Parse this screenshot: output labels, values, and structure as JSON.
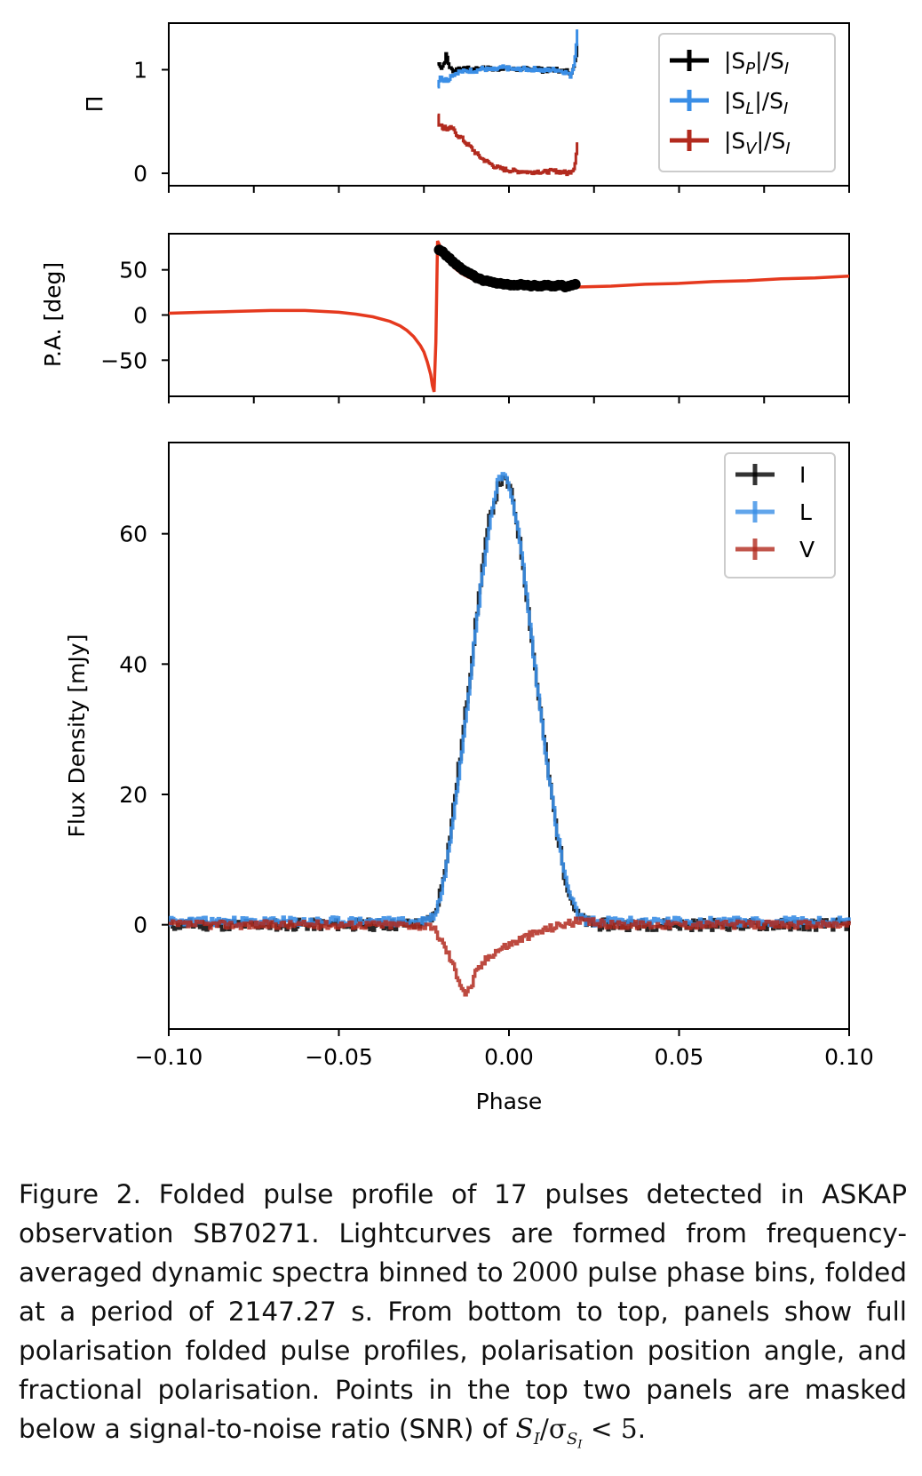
{
  "colors": {
    "black": "#000000",
    "blue": "#3a8ee6",
    "red": "#b22a1e",
    "pa_model": "#e5391e",
    "axis": "#000000"
  },
  "chart_data": [
    {
      "type": "line",
      "panel": "fractional polarisation (top)",
      "xlim": [
        -0.1,
        0.1
      ],
      "ylim": [
        -0.12,
        1.45
      ],
      "yticks": [
        {
          "v": 0,
          "label": "0"
        },
        {
          "v": 1,
          "label": "1"
        }
      ],
      "ylabel": "Π",
      "series": [
        {
          "name": "|S_P|/S_I",
          "legend": {
            "main": "|S",
            "sub": "P",
            "tail": "|/S",
            "sub2": "I"
          },
          "color": "#000000",
          "x": [
            -0.021,
            -0.0205,
            -0.02,
            -0.0195,
            -0.019,
            -0.0185,
            -0.018,
            -0.0175,
            -0.017,
            -0.016,
            -0.015,
            -0.014,
            -0.012,
            -0.01,
            -0.008,
            -0.006,
            -0.004,
            -0.002,
            0.0,
            0.002,
            0.004,
            0.006,
            0.008,
            0.01,
            0.012,
            0.014,
            0.016,
            0.017,
            0.018,
            0.019,
            0.0195,
            0.02
          ],
          "y": [
            1.05,
            1.06,
            1.02,
            1.04,
            1.08,
            1.16,
            1.07,
            1.02,
            1.0,
            0.99,
            1.02,
            1.0,
            1.01,
            1.0,
            1.02,
            1.01,
            1.0,
            1.02,
            1.01,
            1.0,
            1.01,
            1.0,
            1.02,
            0.99,
            1.0,
            1.0,
            0.98,
            0.99,
            0.97,
            1.02,
            1.1,
            1.25
          ]
        },
        {
          "name": "|S_L|/S_I",
          "legend": {
            "main": "|S",
            "sub": "L",
            "tail": "|/S",
            "sub2": "I"
          },
          "color": "#3a8ee6",
          "x": [
            -0.021,
            -0.0205,
            -0.02,
            -0.0195,
            -0.019,
            -0.0185,
            -0.018,
            -0.0175,
            -0.017,
            -0.016,
            -0.015,
            -0.014,
            -0.012,
            -0.01,
            -0.008,
            -0.006,
            -0.004,
            -0.002,
            0.0,
            0.002,
            0.004,
            0.006,
            0.008,
            0.01,
            0.012,
            0.014,
            0.016,
            0.017,
            0.018,
            0.019,
            0.0195,
            0.02
          ],
          "y": [
            0.85,
            0.92,
            0.95,
            0.88,
            0.92,
            0.9,
            0.9,
            0.93,
            0.95,
            0.96,
            0.98,
            0.98,
            0.99,
            0.99,
            1.01,
            1.0,
            1.0,
            1.02,
            1.01,
            1.0,
            1.01,
            1.0,
            1.01,
            0.99,
            1.0,
            1.0,
            0.98,
            0.97,
            0.94,
            1.05,
            1.2,
            1.38
          ]
        },
        {
          "name": "|S_V|/S_I",
          "legend": {
            "main": "|S",
            "sub": "V",
            "tail": "|/S",
            "sub2": "I"
          },
          "color": "#b22a1e",
          "x": [
            -0.021,
            -0.0205,
            -0.02,
            -0.0195,
            -0.019,
            -0.018,
            -0.017,
            -0.016,
            -0.015,
            -0.014,
            -0.013,
            -0.012,
            -0.011,
            -0.01,
            -0.009,
            -0.008,
            -0.007,
            -0.006,
            -0.005,
            -0.004,
            -0.002,
            0.0,
            0.002,
            0.004,
            0.006,
            0.008,
            0.01,
            0.012,
            0.014,
            0.016,
            0.017,
            0.018,
            0.019,
            0.0195,
            0.02
          ],
          "y": [
            0.55,
            0.45,
            0.48,
            0.42,
            0.45,
            0.42,
            0.44,
            0.4,
            0.36,
            0.34,
            0.3,
            0.27,
            0.24,
            0.2,
            0.17,
            0.14,
            0.12,
            0.1,
            0.08,
            0.06,
            0.04,
            0.03,
            0.02,
            0.02,
            0.01,
            0.02,
            0.01,
            0.02,
            0.02,
            0.01,
            0.0,
            0.02,
            0.05,
            0.15,
            0.3
          ]
        }
      ]
    },
    {
      "type": "line",
      "panel": "position angle (middle)",
      "xlim": [
        -0.1,
        0.1
      ],
      "ylim": [
        -90,
        90
      ],
      "yticks": [
        {
          "v": 50,
          "label": "50"
        },
        {
          "v": 0,
          "label": "0"
        },
        {
          "v": -50,
          "label": "−50"
        }
      ],
      "ylabel": "P.A. [deg]",
      "model": {
        "name": "RVM fit",
        "color": "#e5391e",
        "x": [
          -0.1,
          -0.09,
          -0.08,
          -0.07,
          -0.06,
          -0.05,
          -0.045,
          -0.04,
          -0.035,
          -0.032,
          -0.03,
          -0.028,
          -0.026,
          -0.025,
          -0.024,
          -0.023,
          -0.0225,
          -0.022,
          -0.0215,
          -0.021,
          -0.0205,
          -0.02,
          -0.019,
          -0.018,
          -0.016,
          -0.014,
          -0.012,
          -0.01,
          -0.008,
          -0.005,
          0.0,
          0.005,
          0.01,
          0.02,
          0.03,
          0.04,
          0.05,
          0.06,
          0.07,
          0.08,
          0.09,
          0.1
        ],
        "y": [
          2,
          3,
          4,
          5,
          5,
          3,
          1,
          -2,
          -7,
          -12,
          -17,
          -24,
          -34,
          -41,
          -52,
          -66,
          -78,
          -85,
          -30,
          82,
          78,
          73,
          66,
          60,
          52,
          46,
          42,
          39,
          37,
          35,
          33,
          32,
          31,
          31,
          32,
          34,
          35,
          37,
          38,
          40,
          41,
          43
        ]
      },
      "points": {
        "name": "measured P.A.",
        "color": "#000000",
        "x": [
          -0.0205,
          -0.0195,
          -0.0185,
          -0.0175,
          -0.0165,
          -0.0155,
          -0.0145,
          -0.0135,
          -0.0125,
          -0.0115,
          -0.0105,
          -0.0095,
          -0.0085,
          -0.0075,
          -0.0065,
          -0.0055,
          -0.0045,
          -0.0035,
          -0.0025,
          -0.0015,
          -0.0005,
          0.0005,
          0.0015,
          0.0025,
          0.0035,
          0.0045,
          0.0055,
          0.0065,
          0.0075,
          0.0085,
          0.0095,
          0.0105,
          0.0115,
          0.0125,
          0.0135,
          0.0145,
          0.0155,
          0.0165,
          0.0175,
          0.0185,
          0.0195
        ],
        "y": [
          72,
          70,
          66,
          63,
          59,
          56,
          53,
          50,
          48,
          46,
          44,
          41,
          40,
          38,
          38,
          37,
          36,
          35,
          35,
          34,
          34,
          33,
          33,
          33,
          34,
          33,
          33,
          32,
          33,
          32,
          32,
          33,
          33,
          32,
          32,
          33,
          33,
          31,
          32,
          33,
          34
        ]
      }
    },
    {
      "type": "line",
      "panel": "full polarisation pulse profile (bottom)",
      "xlim": [
        -0.1,
        0.1
      ],
      "ylim": [
        -16,
        74
      ],
      "yticks": [
        {
          "v": 0,
          "label": "0"
        },
        {
          "v": 20,
          "label": "20"
        },
        {
          "v": 40,
          "label": "40"
        },
        {
          "v": 60,
          "label": "60"
        }
      ],
      "xticks": [
        {
          "v": -0.1,
          "label": "−0.10"
        },
        {
          "v": -0.05,
          "label": "−0.05"
        },
        {
          "v": 0.0,
          "label": "0.00"
        },
        {
          "v": 0.05,
          "label": "0.05"
        },
        {
          "v": 0.1,
          "label": "0.10"
        }
      ],
      "xlabel": "Phase",
      "ylabel": "Flux Density [mJy]",
      "series": [
        {
          "name": "I",
          "color": "#000000",
          "noise": 0.9,
          "x": [
            -0.1,
            -0.06,
            -0.03,
            -0.025,
            -0.022,
            -0.02,
            -0.018,
            -0.016,
            -0.014,
            -0.012,
            -0.01,
            -0.008,
            -0.006,
            -0.004,
            -0.003,
            -0.002,
            -0.001,
            0.0,
            0.001,
            0.002,
            0.004,
            0.006,
            0.008,
            0.01,
            0.012,
            0.014,
            0.016,
            0.018,
            0.02,
            0.022,
            0.025,
            0.03,
            0.06,
            0.1
          ],
          "y": [
            0,
            0,
            0,
            0.3,
            1.5,
            6,
            12,
            20,
            28,
            37,
            46,
            55,
            62,
            66,
            68,
            68,
            68,
            67,
            65,
            62,
            55,
            46,
            37,
            29,
            21,
            14,
            8,
            4,
            1.5,
            0.5,
            0,
            0,
            0,
            0
          ]
        },
        {
          "name": "L",
          "color": "#3a8ee6",
          "noise": 0.7,
          "x": [
            -0.1,
            -0.06,
            -0.03,
            -0.025,
            -0.022,
            -0.02,
            -0.018,
            -0.016,
            -0.014,
            -0.012,
            -0.01,
            -0.008,
            -0.006,
            -0.004,
            -0.003,
            -0.002,
            -0.001,
            0.0,
            0.001,
            0.002,
            0.004,
            0.006,
            0.008,
            0.01,
            0.012,
            0.014,
            0.016,
            0.018,
            0.02,
            0.022,
            0.025,
            0.03,
            0.06,
            0.1
          ],
          "y": [
            0.5,
            0.5,
            0.5,
            0.6,
            1.5,
            5,
            11,
            19,
            27,
            36,
            45,
            54,
            61,
            67,
            69,
            69,
            68,
            67,
            65,
            62,
            55,
            46,
            37,
            29,
            21,
            14,
            8,
            4,
            1.5,
            0.7,
            0.5,
            0.5,
            0.5,
            0.5
          ]
        },
        {
          "name": "V",
          "color": "#b22a1e",
          "noise": 0.6,
          "x": [
            -0.1,
            -0.06,
            -0.03,
            -0.025,
            -0.022,
            -0.02,
            -0.018,
            -0.016,
            -0.014,
            -0.013,
            -0.012,
            -0.011,
            -0.01,
            -0.008,
            -0.006,
            -0.004,
            -0.002,
            0.0,
            0.002,
            0.004,
            0.006,
            0.008,
            0.01,
            0.012,
            0.015,
            0.02,
            0.025,
            0.03,
            0.06,
            0.1
          ],
          "y": [
            0,
            0,
            0,
            -0.2,
            -0.8,
            -2.5,
            -4.5,
            -7,
            -9.5,
            -10.5,
            -10,
            -9,
            -7.5,
            -6,
            -4.8,
            -4,
            -3.5,
            -3,
            -2.5,
            -2,
            -1.6,
            -1.2,
            -0.8,
            -0.5,
            0,
            0.5,
            0.3,
            0,
            0,
            0
          ]
        }
      ]
    }
  ],
  "caption": {
    "label": "Figure 2.",
    "text_before_bins": "Folded pulse profile of 17 pulses detected in ASKAP observation SB70271. Lightcurves are formed from frequency-averaged dynamic spectra binned to ",
    "bins": "2000",
    "text_after_bins": " pulse phase bins, folded at a period of 2147.27 s. From bottom to top, panels show full polarisation folded pulse profiles, polarisation position angle, and fractional polarisation. Points in the top two panels are masked below a signal-to-noise ratio (SNR) of ",
    "snr_S": "S",
    "snr_I": "I",
    "snr_slash_sigma": "/σ",
    "snr_sub_S": "S",
    "snr_sub_I": "I",
    "snr_lt": " < ",
    "snr_value": "5",
    "snr_end": "."
  }
}
